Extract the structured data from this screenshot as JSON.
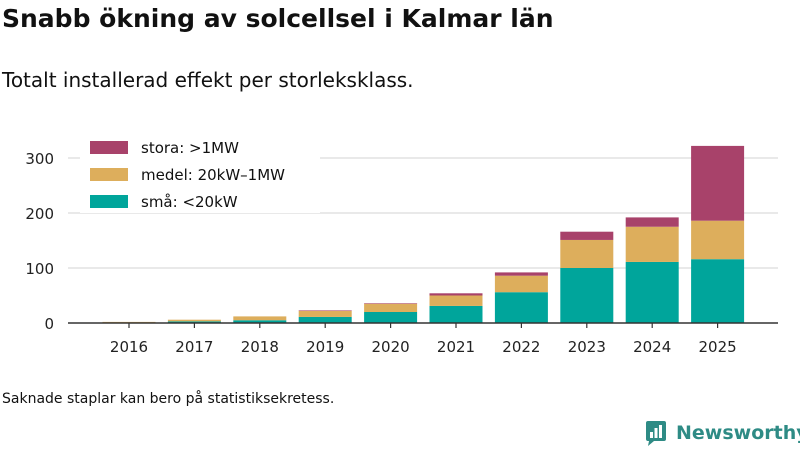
{
  "title": "Snabb ökning av solcellsel i Kalmar län",
  "subtitle": "Totalt installerad effekt per storleksklass.",
  "footnote": "Saknade staplar kan bero på statistiksekretess.",
  "brand": "Newsworthy",
  "colors": {
    "stora": "#a8426a",
    "medel": "#ddae5c",
    "sma": "#00a59b"
  },
  "chart_data": {
    "type": "bar",
    "stacked": true,
    "categories": [
      "2016",
      "2017",
      "2018",
      "2019",
      "2020",
      "2021",
      "2022",
      "2023",
      "2024",
      "2025"
    ],
    "series": [
      {
        "name": "små: <20kW",
        "key": "sma",
        "values": [
          1,
          3,
          5,
          11,
          20,
          31,
          56,
          100,
          111,
          116
        ]
      },
      {
        "name": "medel: 20kW–1MW",
        "key": "medel",
        "values": [
          1,
          3,
          7,
          11,
          15,
          19,
          30,
          51,
          64,
          70
        ]
      },
      {
        "name": "stora: >1MW",
        "key": "stora",
        "values": [
          0,
          0,
          0,
          1,
          1,
          4,
          6,
          15,
          17,
          136
        ]
      }
    ],
    "legend_order": [
      "stora",
      "medel",
      "sma"
    ],
    "yticks": [
      0,
      100,
      200,
      300
    ],
    "ylim": [
      0,
      330
    ],
    "xlabel": "",
    "ylabel": "",
    "grid": true,
    "legend_position": "top-left"
  }
}
